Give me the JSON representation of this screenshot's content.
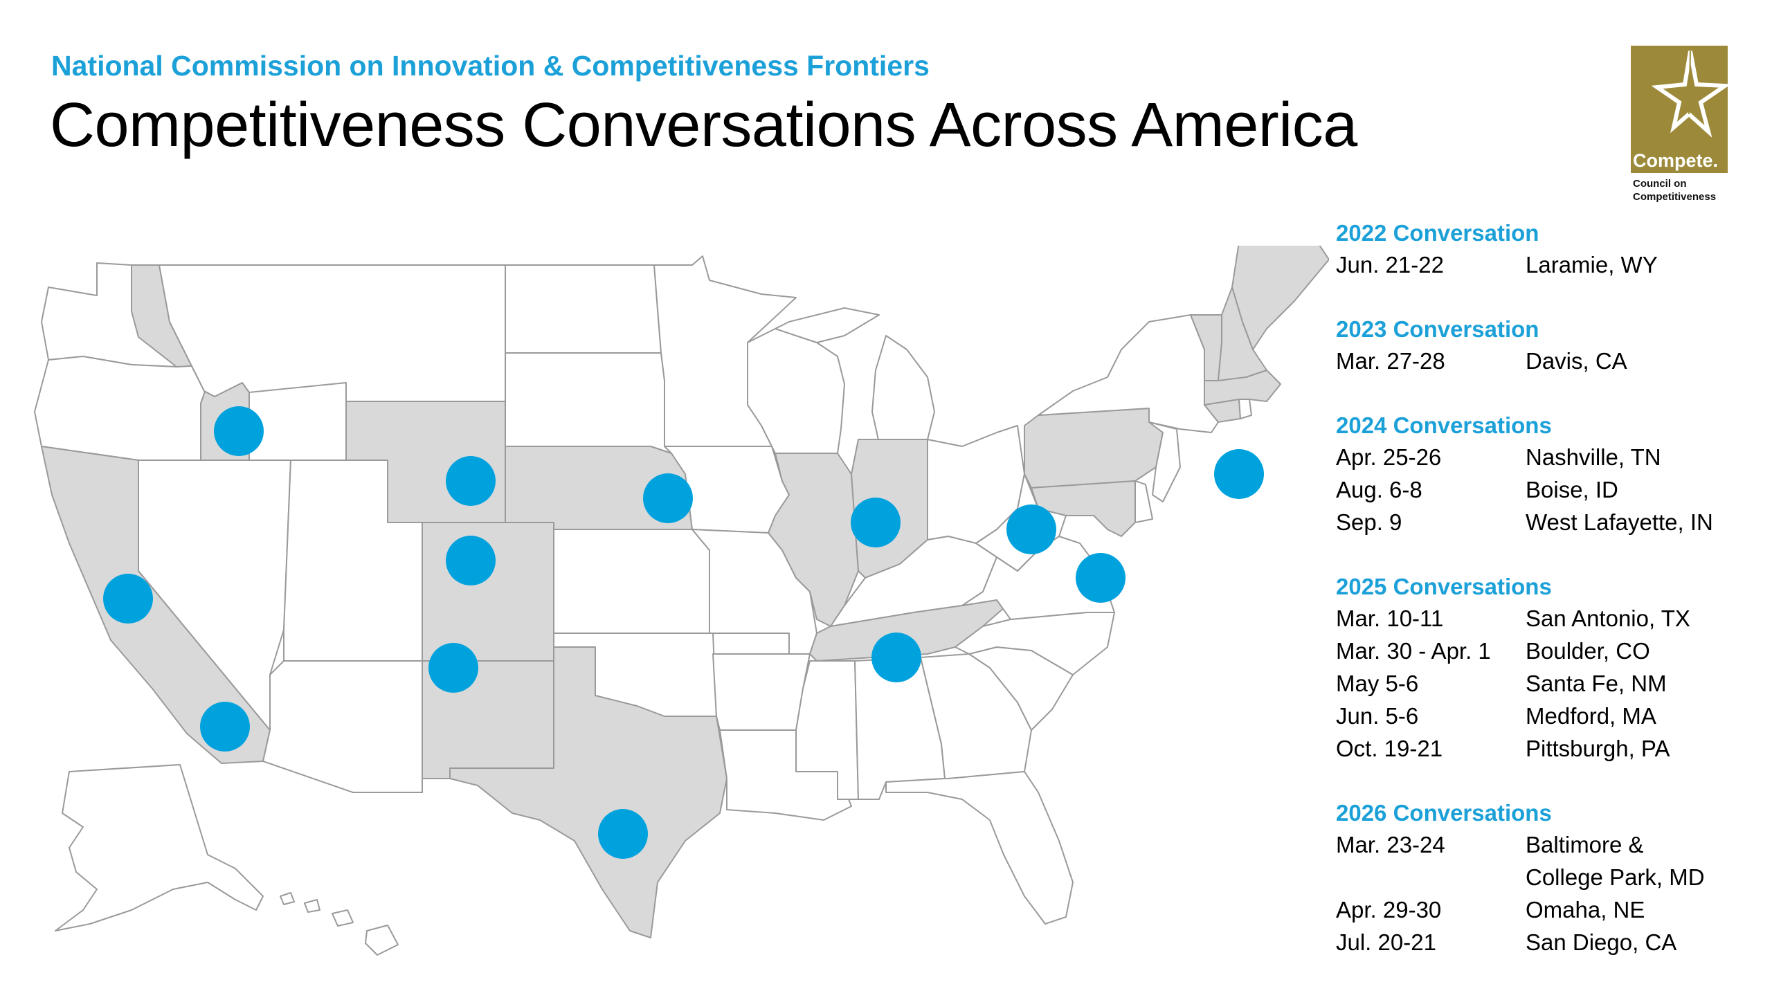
{
  "header": {
    "subtitle": "National Commission on Innovation & Competitiveness Frontiers",
    "title": "Competitiveness Conversations Across America"
  },
  "logo": {
    "wordmark": "Compete.",
    "org_line1": "Council on",
    "org_line2": "Competitiveness",
    "color": "#9c8a3a"
  },
  "colors": {
    "accent": "#1ba0d8",
    "marker": "#00a2de",
    "highlighted_state": "#d9d9d9",
    "state_border": "#9a9a9a"
  },
  "map": {
    "highlighted_states": [
      "ID",
      "CA",
      "WY",
      "CO",
      "NE",
      "NM",
      "TX",
      "IL",
      "IN",
      "TN",
      "PA",
      "MD",
      "VT",
      "NH",
      "ME",
      "MA",
      "CT"
    ],
    "markers": [
      {
        "city": "Boise, ID"
      },
      {
        "city": "Laramie, WY"
      },
      {
        "city": "Boulder, CO"
      },
      {
        "city": "Omaha, NE"
      },
      {
        "city": "Davis, CA"
      },
      {
        "city": "San Diego, CA"
      },
      {
        "city": "Santa Fe, NM"
      },
      {
        "city": "San Antonio, TX"
      },
      {
        "city": "West Lafayette, IN"
      },
      {
        "city": "Nashville, TN"
      },
      {
        "city": "Pittsburgh, PA"
      },
      {
        "city": "Baltimore & College Park, MD"
      },
      {
        "city": "Medford, MA"
      }
    ]
  },
  "schedule": [
    {
      "heading": "2022 Conversation",
      "events": [
        {
          "date": "Jun. 21-22",
          "location": "Laramie, WY"
        }
      ]
    },
    {
      "heading": "2023 Conversation",
      "events": [
        {
          "date": "Mar. 27-28",
          "location": "Davis, CA"
        }
      ]
    },
    {
      "heading": "2024 Conversations",
      "events": [
        {
          "date": "Apr. 25-26",
          "location": "Nashville, TN"
        },
        {
          "date": "Aug. 6-8",
          "location": "Boise, ID"
        },
        {
          "date": "Sep. 9",
          "location": "West Lafayette, IN"
        }
      ]
    },
    {
      "heading": "2025 Conversations",
      "events": [
        {
          "date": "Mar. 10-11",
          "location": "San Antonio, TX"
        },
        {
          "date": "Mar. 30 - Apr. 1",
          "location": "Boulder, CO"
        },
        {
          "date": "May 5-6",
          "location": "Santa Fe, NM"
        },
        {
          "date": "Jun. 5-6",
          "location": "Medford, MA"
        },
        {
          "date": "Oct. 19-21",
          "location": "Pittsburgh, PA"
        }
      ]
    },
    {
      "heading": "2026 Conversations",
      "events": [
        {
          "date": "Mar. 23-24",
          "location": "Baltimore &"
        },
        {
          "date": "",
          "location": "College Park, MD"
        },
        {
          "date": "Apr. 29-30",
          "location": "Omaha, NE"
        },
        {
          "date": "Jul. 20-21",
          "location": "San Diego, CA"
        }
      ]
    }
  ]
}
